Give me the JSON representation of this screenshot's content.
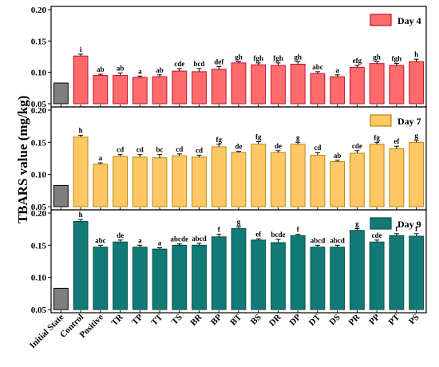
{
  "chart_data": {
    "type": "bar",
    "ylabel": "TBARS value (mg/kg)",
    "categories": [
      "Initial State",
      "Control",
      "Positive",
      "TR",
      "TP",
      "TT",
      "TS",
      "BR",
      "BP",
      "BT",
      "BS",
      "DR",
      "DP",
      "DT",
      "DS",
      "PR",
      "PP",
      "PT",
      "PS"
    ],
    "ylim": [
      0.05,
      0.2
    ],
    "yticks": [
      "0.05",
      "0.10",
      "0.15",
      "0.20"
    ],
    "initial_value": 0.083,
    "initial_color": "#7f7f7f",
    "panels": [
      {
        "name": "Day 4",
        "color": "#ff6b6b",
        "edge": "#c0102a",
        "values": [
          0.126,
          0.095,
          0.095,
          0.092,
          0.093,
          0.102,
          0.101,
          0.105,
          0.115,
          0.112,
          0.111,
          0.113,
          0.098,
          0.093,
          0.108,
          0.114,
          0.111,
          0.117
        ],
        "errors": [
          0.003,
          0.002,
          0.004,
          0.002,
          0.003,
          0.004,
          0.005,
          0.004,
          0.002,
          0.003,
          0.004,
          0.004,
          0.003,
          0.003,
          0.003,
          0.003,
          0.003,
          0.004
        ],
        "labels": [
          "i",
          "ab",
          "ab",
          "a",
          "ab",
          "cde",
          "bcd",
          "def",
          "gh",
          "fgh",
          "fgh",
          "gh",
          "abc",
          "a",
          "efg",
          "gh",
          "fgh",
          "h"
        ]
      },
      {
        "name": "Day 7",
        "color": "#ffc864",
        "edge": "#b8860b",
        "values": [
          0.158,
          0.116,
          0.128,
          0.127,
          0.126,
          0.129,
          0.127,
          0.143,
          0.134,
          0.147,
          0.134,
          0.147,
          0.13,
          0.12,
          0.133,
          0.147,
          0.14,
          0.15
        ],
        "errors": [
          0.003,
          0.002,
          0.003,
          0.004,
          0.005,
          0.003,
          0.003,
          0.004,
          0.002,
          0.004,
          0.003,
          0.003,
          0.004,
          0.002,
          0.004,
          0.003,
          0.004,
          0.003
        ],
        "labels": [
          "h",
          "a",
          "cd",
          "cd",
          "bc",
          "cd",
          "cd",
          "fg",
          "de",
          "fg",
          "de",
          "g",
          "cd",
          "ab",
          "cde",
          "fg",
          "ef",
          "g"
        ]
      },
      {
        "name": "Day 9",
        "color": "#127a75",
        "edge": "#0a4f4b",
        "values": [
          0.187,
          0.147,
          0.155,
          0.147,
          0.144,
          0.15,
          0.15,
          0.163,
          0.176,
          0.158,
          0.154,
          0.165,
          0.147,
          0.147,
          0.173,
          0.155,
          0.165,
          0.164
        ],
        "errors": [
          0.003,
          0.003,
          0.003,
          0.003,
          0.002,
          0.002,
          0.003,
          0.004,
          0.003,
          0.002,
          0.005,
          0.002,
          0.003,
          0.003,
          0.003,
          0.003,
          0.003,
          0.004
        ],
        "labels": [
          "h",
          "abc",
          "de",
          "a",
          "a",
          "abcde",
          "abcd",
          "f",
          "g",
          "ef",
          "bcde",
          "f",
          "abcd",
          "abcd",
          "g",
          "cde",
          "f",
          "f"
        ]
      }
    ]
  }
}
